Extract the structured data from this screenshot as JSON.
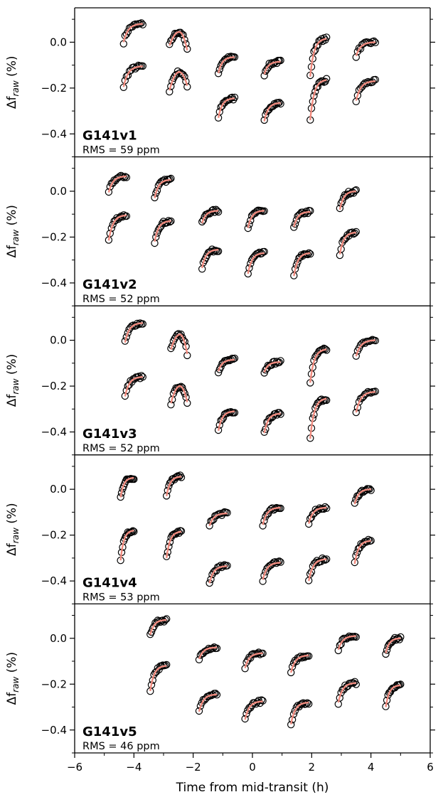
{
  "chart_data": {
    "type": "scatter",
    "xlabel": "Time from mid-transit (h)",
    "ylabel_main": "Δf",
    "ylabel_sub": "raw",
    "ylabel_unit": "(%)",
    "xlim": [
      -6,
      6
    ],
    "ylim": [
      -0.5,
      0.15
    ],
    "xticks": [
      "−6",
      "−4",
      "−2",
      "0",
      "2",
      "4",
      "6"
    ],
    "xtick_values": [
      -6,
      -4,
      -2,
      0,
      2,
      4,
      6
    ],
    "yticks": [
      "0.0",
      "−0.2",
      "−0.4"
    ],
    "ytick_values": [
      0.0,
      -0.2,
      -0.4
    ],
    "marker": "open-circle",
    "marker_color": "#000000",
    "model_color": "#f08a7e",
    "panels": [
      {
        "name": "G141v1",
        "rms": "RMS = 59 ppm",
        "orbits": [
          {
            "t0": -4.35,
            "t1": -3.7,
            "y0": 0.0,
            "y1": 0.08
          },
          {
            "t0": -4.35,
            "t1": -3.7,
            "y0": -0.195,
            "y1": -0.105
          },
          {
            "t0": -2.8,
            "t1": -2.2,
            "y0": -0.015,
            "y1": -0.035,
            "peak": 0.045
          },
          {
            "t0": -2.8,
            "t1": -2.2,
            "y0": -0.21,
            "y1": -0.19,
            "peak": -0.13
          },
          {
            "t0": -1.15,
            "t1": -0.6,
            "y0": -0.135,
            "y1": -0.065
          },
          {
            "t0": -1.15,
            "t1": -0.6,
            "y0": -0.33,
            "y1": -0.245
          },
          {
            "t0": 0.4,
            "t1": 0.95,
            "y0": -0.14,
            "y1": -0.085
          },
          {
            "t0": 0.4,
            "t1": 0.95,
            "y0": -0.345,
            "y1": -0.265
          },
          {
            "t0": 1.95,
            "t1": 2.5,
            "y0": -0.15,
            "y1": 0.015
          },
          {
            "t0": 1.95,
            "t1": 2.5,
            "y0": -0.34,
            "y1": -0.165
          },
          {
            "t0": 3.5,
            "t1": 4.15,
            "y0": -0.06,
            "y1": 0.0
          },
          {
            "t0": 3.5,
            "t1": 4.15,
            "y0": -0.255,
            "y1": -0.17
          }
        ]
      },
      {
        "name": "G141v2",
        "rms": "RMS = 52 ppm",
        "orbits": [
          {
            "t0": -4.85,
            "t1": -4.25,
            "y0": -0.005,
            "y1": 0.065
          },
          {
            "t0": -4.85,
            "t1": -4.25,
            "y0": -0.215,
            "y1": -0.105
          },
          {
            "t0": -3.3,
            "t1": -2.75,
            "y0": -0.03,
            "y1": 0.05
          },
          {
            "t0": -3.3,
            "t1": -2.75,
            "y0": -0.22,
            "y1": -0.13
          },
          {
            "t0": -1.7,
            "t1": -1.15,
            "y0": -0.14,
            "y1": -0.085
          },
          {
            "t0": -1.7,
            "t1": -1.15,
            "y0": -0.335,
            "y1": -0.255
          },
          {
            "t0": -0.15,
            "t1": 0.4,
            "y0": -0.16,
            "y1": -0.085
          },
          {
            "t0": -0.15,
            "t1": 0.4,
            "y0": -0.36,
            "y1": -0.27
          },
          {
            "t0": 1.4,
            "t1": 1.95,
            "y0": -0.155,
            "y1": -0.09
          },
          {
            "t0": 1.4,
            "t1": 1.95,
            "y0": -0.37,
            "y1": -0.27
          },
          {
            "t0": 2.95,
            "t1": 3.5,
            "y0": -0.08,
            "y1": 0.0
          },
          {
            "t0": 2.95,
            "t1": 3.5,
            "y0": -0.275,
            "y1": -0.18
          }
        ]
      },
      {
        "name": "G141v3",
        "rms": "RMS = 52 ppm",
        "orbits": [
          {
            "t0": -4.3,
            "t1": -3.7,
            "y0": -0.01,
            "y1": 0.075
          },
          {
            "t0": -4.3,
            "t1": -3.7,
            "y0": -0.245,
            "y1": -0.16
          },
          {
            "t0": -2.75,
            "t1": -2.2,
            "y0": -0.04,
            "y1": -0.06,
            "peak": 0.025
          },
          {
            "t0": -2.75,
            "t1": -2.2,
            "y0": -0.275,
            "y1": -0.27,
            "peak": -0.2
          },
          {
            "t0": -1.15,
            "t1": -0.6,
            "y0": -0.135,
            "y1": -0.085
          },
          {
            "t0": -1.15,
            "t1": -0.6,
            "y0": -0.395,
            "y1": -0.31
          },
          {
            "t0": 0.4,
            "t1": 0.95,
            "y0": -0.14,
            "y1": -0.095
          },
          {
            "t0": 0.4,
            "t1": 0.95,
            "y0": -0.405,
            "y1": -0.32
          },
          {
            "t0": 1.95,
            "t1": 2.5,
            "y0": -0.185,
            "y1": -0.04
          },
          {
            "t0": 1.95,
            "t1": 2.5,
            "y0": -0.43,
            "y1": -0.255
          },
          {
            "t0": 3.5,
            "t1": 4.15,
            "y0": -0.07,
            "y1": 0.0
          },
          {
            "t0": 3.5,
            "t1": 4.15,
            "y0": -0.315,
            "y1": -0.225
          }
        ]
      },
      {
        "name": "G141v4",
        "rms": "RMS = 53 ppm",
        "orbits": [
          {
            "t0": -4.45,
            "t1": -4.0,
            "y0": -0.035,
            "y1": 0.05
          },
          {
            "t0": -4.45,
            "t1": -4.0,
            "y0": -0.31,
            "y1": -0.18
          },
          {
            "t0": -2.9,
            "t1": -2.4,
            "y0": -0.03,
            "y1": 0.055
          },
          {
            "t0": -2.9,
            "t1": -2.4,
            "y0": -0.3,
            "y1": -0.185
          },
          {
            "t0": -1.45,
            "t1": -0.85,
            "y0": -0.16,
            "y1": -0.105
          },
          {
            "t0": -1.45,
            "t1": -0.85,
            "y0": -0.41,
            "y1": -0.335
          },
          {
            "t0": 0.35,
            "t1": 0.95,
            "y0": -0.155,
            "y1": -0.08
          },
          {
            "t0": 0.35,
            "t1": 0.95,
            "y0": -0.395,
            "y1": -0.32
          },
          {
            "t0": 1.9,
            "t1": 2.5,
            "y0": -0.15,
            "y1": -0.08
          },
          {
            "t0": 1.9,
            "t1": 2.5,
            "y0": -0.4,
            "y1": -0.305
          },
          {
            "t0": 3.45,
            "t1": 4.0,
            "y0": -0.065,
            "y1": 0.0
          },
          {
            "t0": 3.45,
            "t1": 4.0,
            "y0": -0.325,
            "y1": -0.225
          }
        ]
      },
      {
        "name": "G141v5",
        "rms": "RMS = 46 ppm",
        "orbits": [
          {
            "t0": -3.45,
            "t1": -2.9,
            "y0": 0.015,
            "y1": 0.08
          },
          {
            "t0": -3.45,
            "t1": -2.9,
            "y0": -0.23,
            "y1": -0.12
          },
          {
            "t0": -1.8,
            "t1": -1.2,
            "y0": -0.09,
            "y1": -0.04
          },
          {
            "t0": -1.8,
            "t1": -1.2,
            "y0": -0.32,
            "y1": -0.245
          },
          {
            "t0": -0.25,
            "t1": 0.35,
            "y0": -0.13,
            "y1": -0.065
          },
          {
            "t0": -0.25,
            "t1": 0.35,
            "y0": -0.355,
            "y1": -0.275
          },
          {
            "t0": 1.3,
            "t1": 1.9,
            "y0": -0.15,
            "y1": -0.075
          },
          {
            "t0": 1.3,
            "t1": 1.9,
            "y0": -0.375,
            "y1": -0.28
          },
          {
            "t0": 2.9,
            "t1": 3.5,
            "y0": -0.05,
            "y1": 0.01
          },
          {
            "t0": 2.9,
            "t1": 3.5,
            "y0": -0.28,
            "y1": -0.195
          },
          {
            "t0": 4.5,
            "t1": 5.0,
            "y0": -0.065,
            "y1": 0.0
          },
          {
            "t0": 4.5,
            "t1": 5.0,
            "y0": -0.3,
            "y1": -0.205
          }
        ]
      }
    ]
  }
}
